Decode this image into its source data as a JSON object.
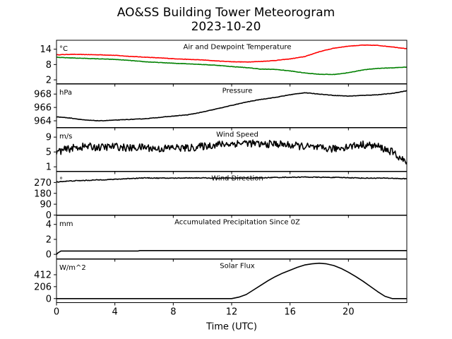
{
  "figure": {
    "title": "AO&SS Building Tower Meteorogram",
    "subtitle": "2023-10-20",
    "xlabel": "Time (UTC)"
  },
  "chart_data": {
    "type": "line",
    "title": "AO&SS Building Tower Meteorogram",
    "subtitle": "2023-10-20",
    "xlabel": "Time (UTC)",
    "xlim": [
      0,
      24
    ],
    "xticks": [
      0,
      4,
      8,
      12,
      16,
      20
    ],
    "grid": false,
    "panels": [
      {
        "name": "temperature",
        "title": "Air and Dewpoint Temperature",
        "unit": "°C",
        "ylim": [
          0.5,
          17.5
        ],
        "yticks": [
          2,
          8,
          14
        ],
        "series": [
          {
            "color": "#ff0000",
            "x": [
              0,
              1,
              2,
              3,
              4,
              5,
              6,
              7,
              8,
              9,
              10,
              11,
              12,
              13,
              14,
              15,
              16,
              17,
              18,
              19,
              20,
              21,
              22,
              23,
              24
            ],
            "values": [
              11.8,
              12.0,
              11.9,
              11.8,
              11.6,
              11.2,
              10.9,
              10.6,
              10.3,
              10.0,
              9.8,
              9.4,
              9.1,
              9.0,
              9.2,
              9.6,
              10.2,
              11.1,
              13.0,
              14.4,
              15.2,
              15.6,
              15.5,
              14.9,
              14.2
            ]
          },
          {
            "color": "#008000",
            "x": [
              0,
              1,
              2,
              3,
              4,
              5,
              6,
              7,
              8,
              9,
              10,
              11,
              12,
              13,
              14,
              15,
              16,
              17,
              18,
              19,
              20,
              21,
              22,
              23,
              24
            ],
            "values": [
              10.8,
              10.6,
              10.4,
              10.2,
              10.0,
              9.6,
              9.1,
              8.8,
              8.5,
              8.3,
              8.0,
              7.7,
              7.2,
              6.8,
              6.2,
              6.1,
              5.5,
              4.7,
              4.2,
              4.1,
              4.8,
              5.9,
              6.5,
              6.7,
              7.0
            ]
          }
        ]
      },
      {
        "name": "pressure",
        "title": "Pressure",
        "unit": "hPa",
        "ylim": [
          963.0,
          969.5
        ],
        "yticks": [
          964,
          966,
          968
        ],
        "series": [
          {
            "color": "#000000",
            "x": [
              0,
              1,
              2,
              3,
              4,
              5,
              6,
              7,
              8,
              9,
              10,
              11,
              12,
              13,
              14,
              15,
              16,
              17,
              18,
              19,
              20,
              21,
              22,
              23,
              24
            ],
            "values": [
              964.6,
              964.4,
              964.1,
              964.0,
              964.1,
              964.2,
              964.3,
              964.5,
              964.7,
              964.9,
              965.3,
              965.8,
              966.3,
              966.8,
              967.2,
              967.5,
              967.9,
              968.2,
              968.0,
              967.8,
              967.7,
              967.8,
              967.9,
              968.1,
              968.5
            ]
          }
        ]
      },
      {
        "name": "wind-speed",
        "title": "Wind Speed",
        "unit": "m/s",
        "ylim": [
          -0.2,
          11.5
        ],
        "yticks": [
          1,
          5,
          9
        ],
        "series": [
          {
            "color": "#000000",
            "x": [
              0,
              1,
              2,
              3,
              4,
              5,
              6,
              7,
              8,
              9,
              10,
              11,
              12,
              13,
              14,
              15,
              16,
              17,
              18,
              19,
              20,
              21,
              22,
              23,
              24
            ],
            "values": [
              5.0,
              6.0,
              6.5,
              6.2,
              6.5,
              6.0,
              6.3,
              5.8,
              6.2,
              6.0,
              6.5,
              7.0,
              7.2,
              7.5,
              7.0,
              7.2,
              6.8,
              6.5,
              6.0,
              5.8,
              6.5,
              7.0,
              6.5,
              5.0,
              2.0
            ]
          }
        ]
      },
      {
        "name": "wind-direction",
        "title": "Wind Direction",
        "unit": "°",
        "ylim": [
          0,
          360
        ],
        "yticks": [
          0,
          90,
          180,
          270
        ],
        "series": [
          {
            "color": "#000000",
            "x": [
              0,
              1,
              2,
              3,
              4,
              5,
              6,
              7,
              8,
              9,
              10,
              11,
              12,
              13,
              14,
              15,
              16,
              17,
              18,
              19,
              20,
              21,
              22,
              23,
              24
            ],
            "values": [
              275,
              283,
              287,
              292,
              296,
              303,
              308,
              306,
              306,
              308,
              308,
              305,
              306,
              306,
              308,
              312,
              313,
              315,
              313,
              312,
              310,
              306,
              306,
              305,
              300
            ]
          }
        ]
      },
      {
        "name": "precipitation",
        "title": "Accumulated Precipitation Since 0Z",
        "unit": "mm",
        "ylim": [
          -0.6,
          5.2
        ],
        "yticks": [
          0,
          2,
          4
        ],
        "series": [
          {
            "color": "#000000",
            "x": [
              0,
              0.1,
              0.3,
              5.6,
              5.7,
              24
            ],
            "values": [
              0.0,
              0.2,
              0.45,
              0.45,
              0.5,
              0.5
            ]
          }
        ]
      },
      {
        "name": "solar-flux",
        "title": "Solar Flux",
        "unit": "W/m^2",
        "ylim": [
          -70,
          680
        ],
        "yticks": [
          0,
          206,
          412
        ],
        "series": [
          {
            "color": "#000000",
            "x": [
              0,
              12.0,
              12.5,
              13.0,
              13.5,
              14.0,
              14.5,
              15.0,
              15.5,
              16.0,
              16.5,
              17.0,
              17.5,
              18.0,
              18.5,
              19.0,
              19.5,
              20.0,
              20.5,
              21.0,
              21.5,
              22.0,
              22.5,
              23.0,
              24.0
            ],
            "values": [
              0,
              0,
              25,
              70,
              150,
              230,
              310,
              380,
              440,
              490,
              540,
              580,
              600,
              610,
              600,
              570,
              520,
              455,
              380,
              300,
              210,
              120,
              40,
              0,
              0
            ]
          }
        ]
      }
    ]
  }
}
